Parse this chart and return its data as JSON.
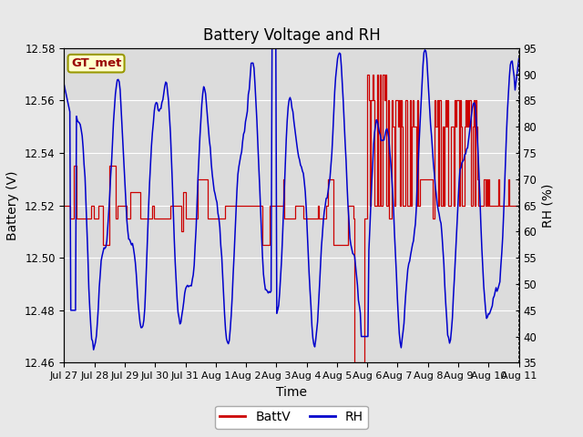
{
  "title": "Battery Voltage and RH",
  "xlabel": "Time",
  "ylabel_left": "Battery (V)",
  "ylabel_right": "RH (%)",
  "legend_label": "GT_met",
  "ylim_left": [
    12.46,
    12.58
  ],
  "ylim_right": [
    35,
    95
  ],
  "yticks_left": [
    12.46,
    12.48,
    12.5,
    12.52,
    12.54,
    12.56,
    12.58
  ],
  "yticks_right": [
    35,
    40,
    45,
    50,
    55,
    60,
    65,
    70,
    75,
    80,
    85,
    90,
    95
  ],
  "xtick_labels": [
    "Jul 27",
    "Jul 28",
    "Jul 29",
    "Jul 30",
    "Jul 31",
    "Aug 1",
    "Aug 2",
    "Aug 3",
    "Aug 4",
    "Aug 5",
    "Aug 6",
    "Aug 7",
    "Aug 8",
    "Aug 9",
    "Aug 10",
    "Aug 11"
  ],
  "bg_color": "#e8e8e8",
  "plot_bg_color": "#dcdcdc",
  "batt_color": "#cc0000",
  "rh_color": "#0000cc",
  "legend_box_color": "#ffffcc",
  "legend_box_edge": "#999900",
  "title_fontsize": 12,
  "axis_fontsize": 10,
  "tick_fontsize": 8.5,
  "legend_text_fontsize": 10,
  "n_days": 16,
  "n_points": 480,
  "rh_min": 35,
  "rh_max": 95,
  "v_min": 12.46,
  "v_max": 12.58
}
